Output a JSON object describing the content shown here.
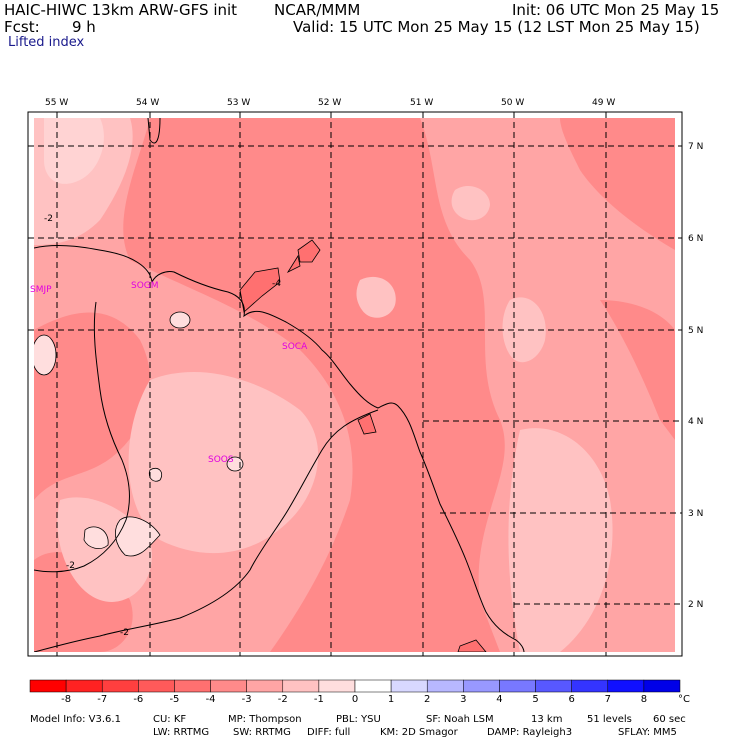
{
  "header": {
    "model": "HAIC-HIWC 13km ARW-GFS init",
    "org": "NCAR/MMM",
    "init": "Init: 06 UTC Mon 25 May 15",
    "fcst_label": "Fcst:",
    "fcst_value": "9 h",
    "valid": "Valid: 15 UTC Mon 25 May 15 (12 LST Mon 25 May 15)",
    "field": "Lifted index"
  },
  "map": {
    "lon_labels": [
      "55 W",
      "54 W",
      "53 W",
      "52 W",
      "51 W",
      "50 W",
      "49 W"
    ],
    "lat_labels": [
      "7 N",
      "6 N",
      "5 N",
      "4 N",
      "3 N",
      "2 N"
    ],
    "stations": [
      "SMJP",
      "SOGM",
      "SOCA",
      "SOOS"
    ],
    "contour_labels": [
      "-2",
      "-4",
      "-2",
      "-2"
    ]
  },
  "colorbar": {
    "labels": [
      "-8",
      "-7",
      "-6",
      "-5",
      "-4",
      "-3",
      "-2",
      "-1",
      "0",
      "1",
      "2",
      "3",
      "4",
      "5",
      "6",
      "7",
      "8"
    ],
    "unit": "°C",
    "colors": [
      "#ff0000",
      "#ff2222",
      "#ff3f3f",
      "#ff5a5a",
      "#ff7070",
      "#ff8a8a",
      "#ffa5a5",
      "#ffc2c2",
      "#ffdede",
      "#ffffff",
      "#d8d8ff",
      "#b8b8ff",
      "#9898ff",
      "#7878ff",
      "#5858ff",
      "#3434ff",
      "#1010ff",
      "#0000e8"
    ]
  },
  "footer": {
    "line1": [
      "Model Info: V3.6.1",
      "CU: KF",
      "MP: Thompson",
      "PBL: YSU",
      "SF: Noah LSM",
      "13 km",
      "51 levels",
      "60 sec"
    ],
    "line2": [
      "LW: RRTMG",
      "SW: RRTMG",
      "DIFF: full",
      "KM: 2D Smagor",
      "DAMP: Rayleigh3",
      "SFLAY: MM5"
    ]
  }
}
